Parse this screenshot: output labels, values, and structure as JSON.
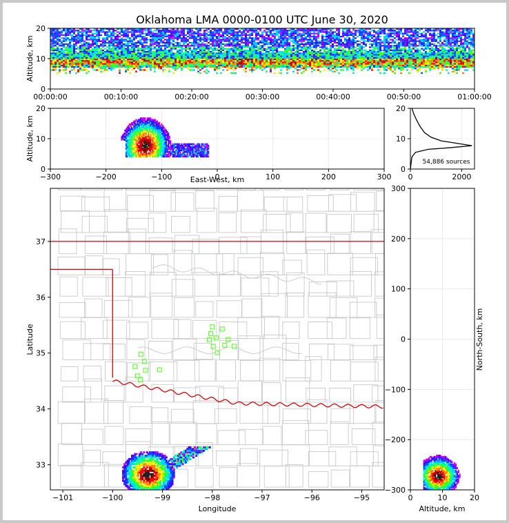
{
  "chart_data": [
    {
      "panel": "time-altitude",
      "type": "heatmap",
      "title": "Oklahoma LMA 0000-0100 UTC June 30, 2020",
      "ylabel": "Altitude, km",
      "xlabel": "",
      "xticks": [
        "00:00:00",
        "00:10:00",
        "00:20:00",
        "00:30:00",
        "00:40:00",
        "00:50:00",
        "01:00:00"
      ],
      "yticks": [
        "0",
        "10",
        "20"
      ],
      "ylim": [
        0,
        20
      ],
      "density_band_km": [
        6,
        20
      ]
    },
    {
      "panel": "ew-altitude",
      "type": "heatmap",
      "xlabel": "East-West, km",
      "ylabel": "Altitude, km",
      "xticks": [
        "−300",
        "−200",
        "−100",
        "0",
        "100",
        "200",
        "300"
      ],
      "yticks": [
        "0",
        "10",
        "20"
      ],
      "xlim": [
        -300,
        300
      ],
      "ylim": [
        0,
        20
      ],
      "cluster": {
        "x_range_km": [
          -170,
          -20
        ],
        "core_x_km": -130,
        "core_alt_km": 8
      }
    },
    {
      "panel": "altitude-histogram",
      "type": "line",
      "xticks": [
        "0",
        "2000"
      ],
      "yticks": [
        "0",
        "10",
        "20"
      ],
      "xlim": [
        0,
        2500
      ],
      "ylim": [
        0,
        20
      ],
      "annotation": "54,886 sources",
      "points": [
        [
          0,
          0
        ],
        [
          60,
          4
        ],
        [
          200,
          5.5
        ],
        [
          700,
          6.5
        ],
        [
          1500,
          7
        ],
        [
          2400,
          7.7
        ],
        [
          1800,
          8.5
        ],
        [
          1200,
          9.3
        ],
        [
          800,
          10.5
        ],
        [
          550,
          12
        ],
        [
          380,
          14
        ],
        [
          250,
          16
        ],
        [
          140,
          18
        ],
        [
          60,
          20
        ]
      ]
    },
    {
      "panel": "plan-view",
      "type": "scatter",
      "xlabel": "Longitude",
      "ylabel": "Latitude",
      "xticks": [
        "−101",
        "−100",
        "−99",
        "−98",
        "−97",
        "−96",
        "−95"
      ],
      "yticks": [
        "33",
        "34",
        "35",
        "36",
        "37"
      ],
      "xlim": [
        -101.25,
        -94.55
      ],
      "ylim": [
        32.55,
        37.95
      ],
      "stations": [
        {
          "lon": -98.0,
          "lat": 35.47
        },
        {
          "lon": -97.8,
          "lat": 35.43
        },
        {
          "lon": -98.03,
          "lat": 35.35
        },
        {
          "lon": -97.92,
          "lat": 35.27
        },
        {
          "lon": -98.06,
          "lat": 35.24
        },
        {
          "lon": -97.68,
          "lat": 35.24
        },
        {
          "lon": -97.75,
          "lat": 35.14
        },
        {
          "lon": -97.56,
          "lat": 35.12
        },
        {
          "lon": -97.98,
          "lat": 35.12
        },
        {
          "lon": -97.9,
          "lat": 35.01
        },
        {
          "lon": -99.43,
          "lat": 34.98
        },
        {
          "lon": -99.36,
          "lat": 34.85
        },
        {
          "lon": -99.55,
          "lat": 34.76
        },
        {
          "lon": -99.34,
          "lat": 34.69
        },
        {
          "lon": -99.06,
          "lat": 34.7
        },
        {
          "lon": -99.5,
          "lat": 34.59
        },
        {
          "lon": -99.44,
          "lat": 34.52
        }
      ],
      "core_lon": -99.3,
      "core_lat": 32.85
    },
    {
      "panel": "altitude-ns",
      "type": "heatmap",
      "xlabel": "Altitude, km",
      "ylabel": "North-South, km",
      "xticks": [
        "0",
        "10",
        "20"
      ],
      "yticks": [
        "−300",
        "−200",
        "−100",
        "0",
        "100",
        "200",
        "300"
      ],
      "xlim": [
        0,
        20
      ],
      "ylim": [
        -300,
        300
      ]
    }
  ]
}
